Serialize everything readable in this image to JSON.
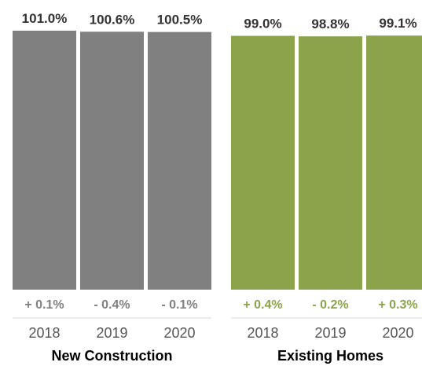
{
  "chart_data": {
    "type": "bar",
    "title": "",
    "ylabel": "",
    "xlabel": "",
    "groups": [
      {
        "name": "New Construction",
        "color": "#808080",
        "change_color": "#808080",
        "bars": [
          {
            "year": "2018",
            "value": 101.0,
            "value_label": "101.0%",
            "change_label": "+ 0.1%"
          },
          {
            "year": "2019",
            "value": 100.6,
            "value_label": "100.6%",
            "change_label": "- 0.4%"
          },
          {
            "year": "2020",
            "value": 100.5,
            "value_label": "100.5%",
            "change_label": "- 0.1%"
          }
        ]
      },
      {
        "name": "Existing Homes",
        "color": "#8ba44c",
        "change_color": "#8ba44c",
        "bars": [
          {
            "year": "2018",
            "value": 99.0,
            "value_label": "99.0%",
            "change_label": "+ 0.4%"
          },
          {
            "year": "2019",
            "value": 98.8,
            "value_label": "98.8%",
            "change_label": "- 0.2%"
          },
          {
            "year": "2020",
            "value": 99.1,
            "value_label": "99.1%",
            "change_label": "+ 0.3%"
          }
        ]
      }
    ],
    "grid": false,
    "legend": "none"
  }
}
